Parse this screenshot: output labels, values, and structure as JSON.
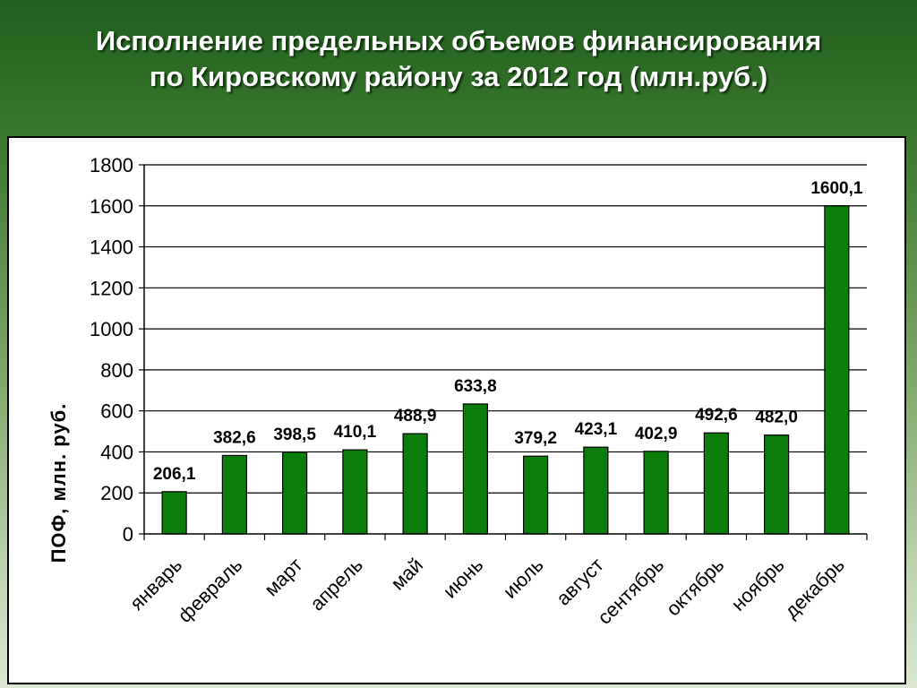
{
  "title": {
    "line1": "Исполнение предельных объемов финансирования",
    "line2": "по Кировскому району за 2012 год (млн.руб.)"
  },
  "chart_data": {
    "type": "bar",
    "ylabel": "ПОФ, млн. руб.",
    "xlabel": "",
    "ylim": [
      0,
      1800
    ],
    "yticks": [
      0,
      200,
      400,
      600,
      800,
      1000,
      1200,
      1400,
      1600,
      1800
    ],
    "grid": true,
    "bar_color": "#0a7d0a",
    "categories": [
      "январь",
      "февраль",
      "март",
      "апрель",
      "май",
      "июнь",
      "июль",
      "август",
      "сентябрь",
      "октябрь",
      "ноябрь",
      "декабрь"
    ],
    "values": [
      206.1,
      382.6,
      398.5,
      410.1,
      488.9,
      633.8,
      379.2,
      423.1,
      402.9,
      492.6,
      482.0,
      1600.1
    ],
    "data_labels": [
      "206,1",
      "382,6",
      "398,5",
      "410,1",
      "488,9",
      "633,8",
      "379,2",
      "423,1",
      "402,9",
      "492,6",
      "482,0",
      "1600,1"
    ]
  }
}
